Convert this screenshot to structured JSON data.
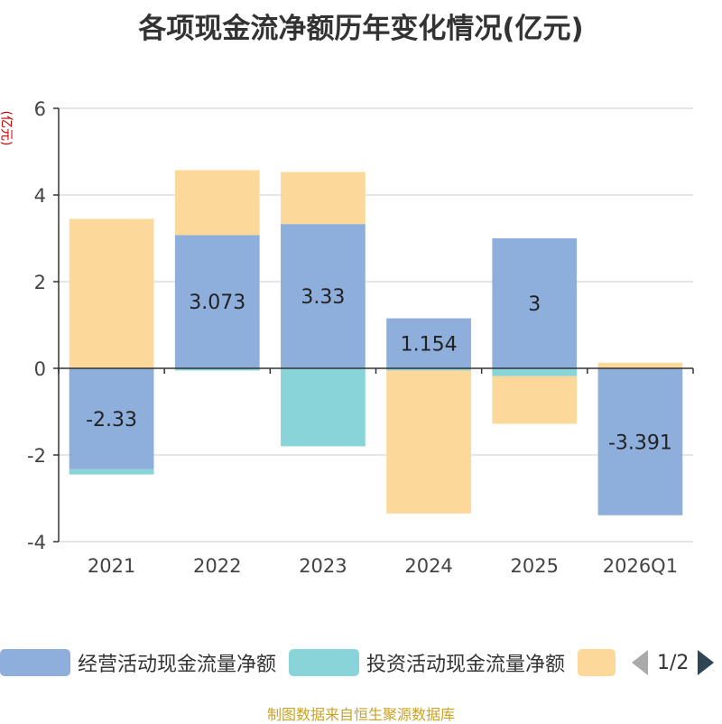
{
  "chart_data": {
    "type": "bar",
    "stacked": true,
    "title": "各项现金流净额历年变化情况(亿元)",
    "ylabel": "(亿元)",
    "xlabel": "",
    "ylim": [
      -4,
      6
    ],
    "yticks": [
      -4,
      -2,
      0,
      2,
      4,
      6
    ],
    "categories": [
      "2021",
      "2022",
      "2023",
      "2024",
      "2025",
      "2026Q1"
    ],
    "series": [
      {
        "name": "经营活动现金流量净额",
        "color": "#8eaedb",
        "values": [
          -2.33,
          3.073,
          3.33,
          1.154,
          3,
          -3.391
        ],
        "labels": [
          "-2.33",
          "3.073",
          "3.33",
          "1.154",
          "3",
          "-3.391"
        ]
      },
      {
        "name": "投资活动现金流量净额",
        "color": "#88d4d8",
        "values": [
          -0.12,
          -0.05,
          -1.8,
          -0.05,
          -0.18,
          0.0
        ]
      },
      {
        "name": "",
        "color": "#fdd89b",
        "values": [
          3.45,
          1.5,
          1.2,
          -3.3,
          -1.1,
          0.13
        ]
      }
    ]
  },
  "legend": {
    "items": [
      {
        "label": "经营活动现金流量净额",
        "color": "#8eaedb"
      },
      {
        "label": "投资活动现金流量净额",
        "color": "#88d4d8"
      },
      {
        "label": "",
        "color": "#fdd89b"
      }
    ],
    "page": "1/2"
  },
  "source": "制图数据来自恒生聚源数据库"
}
